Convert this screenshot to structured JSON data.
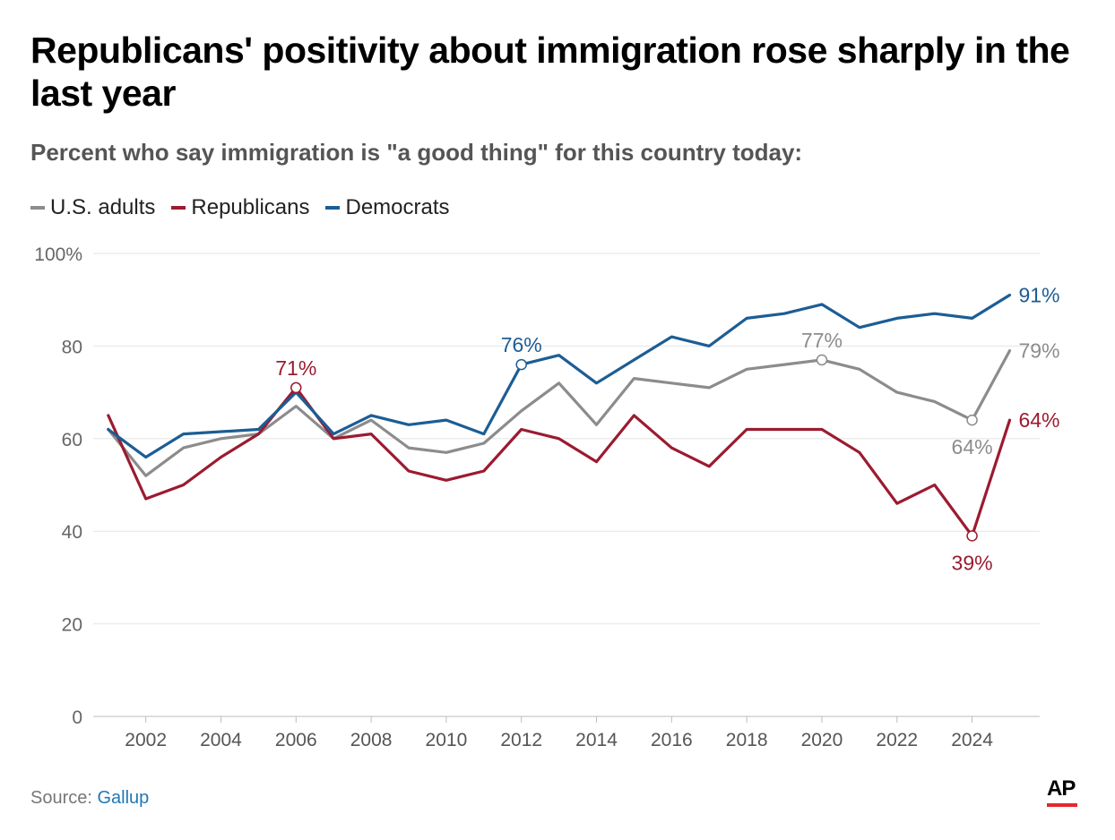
{
  "header": {
    "title": "Republicans' positivity about immigration rose sharply in the last year",
    "subtitle": "Percent who say immigration is \"a good thing\" for this country today:"
  },
  "legend": [
    {
      "label": "U.S. adults",
      "color": "#8c8c8c"
    },
    {
      "label": "Republicans",
      "color": "#9b1b30"
    },
    {
      "label": "Democrats",
      "color": "#1c5d95"
    }
  ],
  "footer": {
    "source_prefix": "Source: ",
    "source_name": "Gallup",
    "logo_text": "AP"
  },
  "chart_data": {
    "type": "line",
    "title": "Republicans' positivity about immigration rose sharply in the last year",
    "subtitle": "Percent who say immigration is \"a good thing\" for this country today:",
    "xlabel": "",
    "ylabel": "",
    "xlim": [
      2000.6,
      2025.8
    ],
    "ylim": [
      0,
      100
    ],
    "yticks": [
      0,
      20,
      40,
      60,
      80,
      100
    ],
    "ytick_labels": [
      "0",
      "20",
      "40",
      "60",
      "80",
      "100%"
    ],
    "xticks": [
      2002,
      2004,
      2006,
      2008,
      2010,
      2012,
      2014,
      2016,
      2018,
      2020,
      2022,
      2024
    ],
    "xtick_labels": [
      "2002",
      "2004",
      "2006",
      "2008",
      "2010",
      "2012",
      "2014",
      "2016",
      "2018",
      "2020",
      "2022",
      "2024"
    ],
    "grid": true,
    "legend_position": "top-left",
    "x": [
      2001,
      2002,
      2003,
      2004,
      2005,
      2006,
      2007,
      2008,
      2009,
      2010,
      2011,
      2012,
      2013,
      2014,
      2015,
      2016,
      2017,
      2018,
      2019,
      2020,
      2021,
      2022,
      2023,
      2024,
      2025
    ],
    "series": [
      {
        "name": "U.S. adults",
        "color": "#8c8c8c",
        "values": [
          62,
          52,
          58,
          60,
          61,
          67,
          60,
          64,
          58,
          57,
          59,
          66,
          72,
          63,
          73,
          72,
          71,
          75,
          76,
          77,
          75,
          70,
          68,
          64,
          79
        ]
      },
      {
        "name": "Republicans",
        "color": "#9b1b30",
        "values": [
          65,
          47,
          50,
          56,
          61,
          71,
          60,
          61,
          53,
          51,
          53,
          62,
          60,
          55,
          65,
          58,
          54,
          62,
          62,
          62,
          57,
          46,
          50,
          39,
          64
        ]
      },
      {
        "name": "Democrats",
        "color": "#1c5d95",
        "values": [
          62,
          56,
          61,
          null,
          62,
          70,
          61,
          65,
          63,
          64,
          61,
          76,
          78,
          72,
          77,
          82,
          80,
          86,
          87,
          89,
          84,
          86,
          87,
          86,
          91
        ]
      }
    ],
    "annotations": [
      {
        "series": "Republicans",
        "x": 2006,
        "y": 71,
        "label": "71%",
        "placement": "above",
        "marker": true
      },
      {
        "series": "Democrats",
        "x": 2012,
        "y": 76,
        "label": "76%",
        "placement": "above",
        "marker": true
      },
      {
        "series": "U.S. adults",
        "x": 2020,
        "y": 77,
        "label": "77%",
        "placement": "above",
        "marker": true
      },
      {
        "series": "U.S. adults",
        "x": 2024,
        "y": 64,
        "label": "64%",
        "placement": "below",
        "marker": true
      },
      {
        "series": "Republicans",
        "x": 2024,
        "y": 39,
        "label": "39%",
        "placement": "below",
        "marker": true
      },
      {
        "series": "Democrats",
        "x": 2025,
        "y": 91,
        "label": "91%",
        "placement": "right",
        "marker": false
      },
      {
        "series": "U.S. adults",
        "x": 2025,
        "y": 79,
        "label": "79%",
        "placement": "right",
        "marker": false
      },
      {
        "series": "Republicans",
        "x": 2025,
        "y": 64,
        "label": "64%",
        "placement": "right",
        "marker": false
      }
    ]
  }
}
